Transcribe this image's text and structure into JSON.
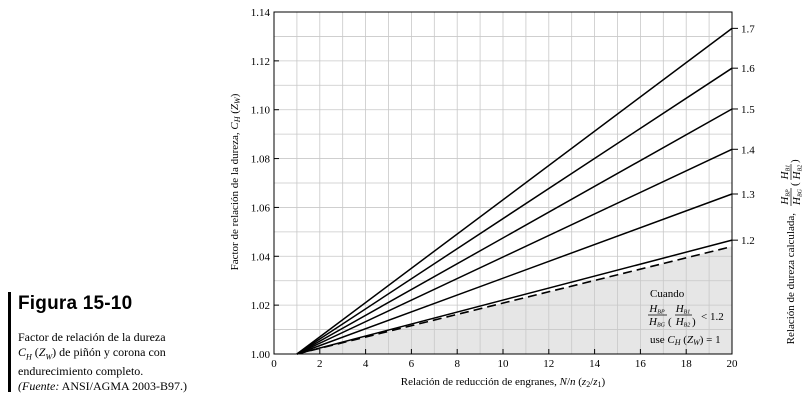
{
  "figure": {
    "number_label": "Figura 15-10",
    "caption_line1": "Factor de relación de la dureza",
    "caption_line2": "de piñón y corona con",
    "caption_line3": "endurecimiento completo.",
    "source_label": "(Fuente:",
    "source_text": "ANSI/AGMA 2003-B97.)"
  },
  "chart_data": {
    "type": "line",
    "title": "",
    "xlabel": "Relación de reducción de engranes, N/n (z2/z1)",
    "ylabel": "Factor de relación de la dureza, CH (ZW)",
    "right_label": "Relación de dureza calculada, (HBP/HBG)(HB1/HB2)",
    "xlim": [
      0,
      20
    ],
    "ylim": [
      1.0,
      1.14
    ],
    "x_ticks": [
      "0",
      "2",
      "4",
      "6",
      "8",
      "10",
      "12",
      "14",
      "16",
      "18",
      "20"
    ],
    "y_ticks": [
      "1.00",
      "1.02",
      "1.04",
      "1.06",
      "1.08",
      "1.10",
      "1.12",
      "1.14"
    ],
    "grid": true,
    "series": [
      {
        "name": "1.7",
        "x": [
          1,
          20
        ],
        "y": [
          1.0,
          1.1333
        ]
      },
      {
        "name": "1.6",
        "x": [
          1,
          20
        ],
        "y": [
          1.0,
          1.117
        ]
      },
      {
        "name": "1.5",
        "x": [
          1,
          20
        ],
        "y": [
          1.0,
          1.1003
        ]
      },
      {
        "name": "1.4",
        "x": [
          1,
          20
        ],
        "y": [
          1.0,
          1.0838
        ]
      },
      {
        "name": "1.3",
        "x": [
          1,
          20
        ],
        "y": [
          1.0,
          1.0655
        ]
      },
      {
        "name": "1.2",
        "x": [
          1,
          20
        ],
        "y": [
          1.0,
          1.0466
        ]
      }
    ],
    "dashed_boundary": {
      "x": [
        1,
        20
      ],
      "y": [
        1.0,
        1.044
      ]
    },
    "annotation": {
      "line1": "Cuando",
      "condition": "< 1.2",
      "line3": "use CH (ZW) = 1"
    }
  }
}
